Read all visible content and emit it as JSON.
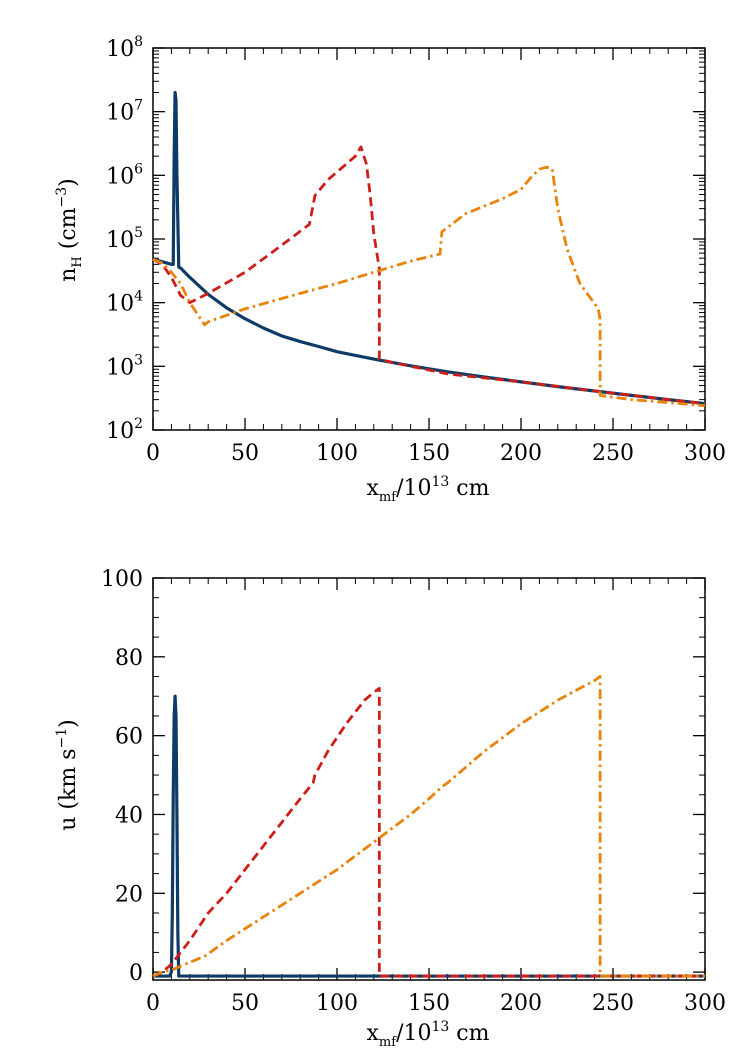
{
  "chart_data": [
    {
      "type": "line",
      "ylabel": {
        "base": "n",
        "sub": "H",
        "rest": " (cm",
        "sup": "−3",
        "end": ")"
      },
      "xlabel": {
        "base": "x",
        "sub": "mf",
        "mid": "/10",
        "sup": "13",
        "end": " cm"
      },
      "xlim": [
        0,
        300
      ],
      "ylim": [
        100,
        100000000
      ],
      "yscale": "log",
      "xticks": [
        "0",
        "50",
        "100",
        "150",
        "200",
        "250",
        "300"
      ],
      "yticks": [
        {
          "base": "10",
          "exp": "2"
        },
        {
          "base": "10",
          "exp": "3"
        },
        {
          "base": "10",
          "exp": "4"
        },
        {
          "base": "10",
          "exp": "5"
        },
        {
          "base": "10",
          "exp": "6"
        },
        {
          "base": "10",
          "exp": "7"
        },
        {
          "base": "10",
          "exp": "8"
        }
      ],
      "series": [
        {
          "style": "solid",
          "color": "#0d3b66",
          "x": [
            0,
            5,
            10,
            11,
            11.5,
            12,
            12.5,
            13,
            14,
            15,
            20,
            30,
            40,
            50,
            60,
            70,
            80,
            90,
            100,
            110,
            120,
            130,
            140,
            160,
            180,
            200,
            220,
            240,
            260,
            280,
            300
          ],
          "y": [
            48000,
            44000,
            40000,
            40000,
            2000000,
            20000000,
            15000000,
            1000000,
            36000,
            35000,
            25000,
            13500,
            8300,
            5600,
            4000,
            3000,
            2450,
            2050,
            1700,
            1480,
            1300,
            1150,
            1020,
            820,
            680,
            570,
            480,
            410,
            350,
            300,
            260
          ]
        },
        {
          "style": "dashed",
          "color": "#cc1f1a",
          "x": [
            0,
            5,
            10,
            15,
            20,
            30,
            50,
            70,
            85,
            88,
            95,
            105,
            110,
            113,
            116,
            118,
            120,
            122,
            123,
            123,
            130,
            160,
            200,
            240,
            280,
            300
          ],
          "y": [
            48000,
            40000,
            25000,
            13000,
            10000,
            14000,
            30000,
            80000,
            170000,
            480000,
            850000,
            1500000,
            2000000,
            2800000,
            1500000,
            500000,
            120000,
            52000,
            35000,
            1300,
            1150,
            760,
            570,
            410,
            300,
            260
          ]
        },
        {
          "style": "dash-dot",
          "color": "#e8830c",
          "x": [
            0,
            5,
            10,
            15,
            20,
            28,
            30,
            50,
            80,
            100,
            120,
            140,
            156,
            157,
            170,
            190,
            200,
            205,
            210,
            214,
            217,
            220,
            225,
            232,
            242,
            243,
            243,
            260,
            280,
            300
          ],
          "y": [
            48000,
            42000,
            30000,
            20000,
            10000,
            4500,
            5000,
            8000,
            14000,
            20000,
            30000,
            45000,
            58000,
            130000,
            250000,
            430000,
            600000,
            900000,
            1250000,
            1350000,
            1250000,
            300000,
            70000,
            20000,
            8000,
            5500,
            350,
            300,
            270,
            240
          ]
        }
      ]
    },
    {
      "type": "line",
      "ylabel": {
        "base": "u",
        "rest": " (km s",
        "sup": "−1",
        "end": ")"
      },
      "xlabel": {
        "base": "x",
        "sub": "mf",
        "mid": "/10",
        "sup": "13",
        "end": " cm"
      },
      "xlim": [
        0,
        300
      ],
      "ylim": [
        -2,
        100
      ],
      "xticks": [
        "0",
        "50",
        "100",
        "150",
        "200",
        "250",
        "300"
      ],
      "yticks": [
        "0",
        "20",
        "40",
        "60",
        "80",
        "100"
      ],
      "series": [
        {
          "style": "solid",
          "color": "#0d3b66",
          "x": [
            0,
            9,
            10,
            10.5,
            11,
            11.5,
            12,
            12.5,
            13,
            13.5,
            14,
            15,
            300
          ],
          "y": [
            -1,
            -1,
            0,
            15,
            45,
            65,
            70,
            65,
            40,
            10,
            -1,
            -1,
            -1
          ]
        },
        {
          "style": "dashed",
          "color": "#cc1f1a",
          "x": [
            0,
            5,
            10,
            20,
            30,
            40,
            50,
            60,
            70,
            80,
            87,
            88,
            95,
            105,
            110,
            115,
            120,
            123,
            123,
            300
          ],
          "y": [
            -1,
            0,
            2,
            8,
            15,
            20,
            26,
            32,
            38,
            44,
            48,
            50,
            56,
            63,
            66,
            69,
            71,
            72,
            -1,
            -1
          ]
        },
        {
          "style": "dash-dot",
          "color": "#e8830c",
          "x": [
            0,
            5,
            10,
            15,
            20,
            28,
            40,
            60,
            80,
            100,
            120,
            140,
            150,
            157,
            160,
            180,
            200,
            220,
            240,
            243,
            243,
            300
          ],
          "y": [
            -1,
            0,
            0.5,
            1.5,
            2.5,
            4,
            8,
            14,
            20,
            26,
            33,
            40,
            44,
            47,
            48,
            56,
            63,
            69,
            74,
            75,
            -1,
            -1
          ]
        }
      ]
    }
  ]
}
